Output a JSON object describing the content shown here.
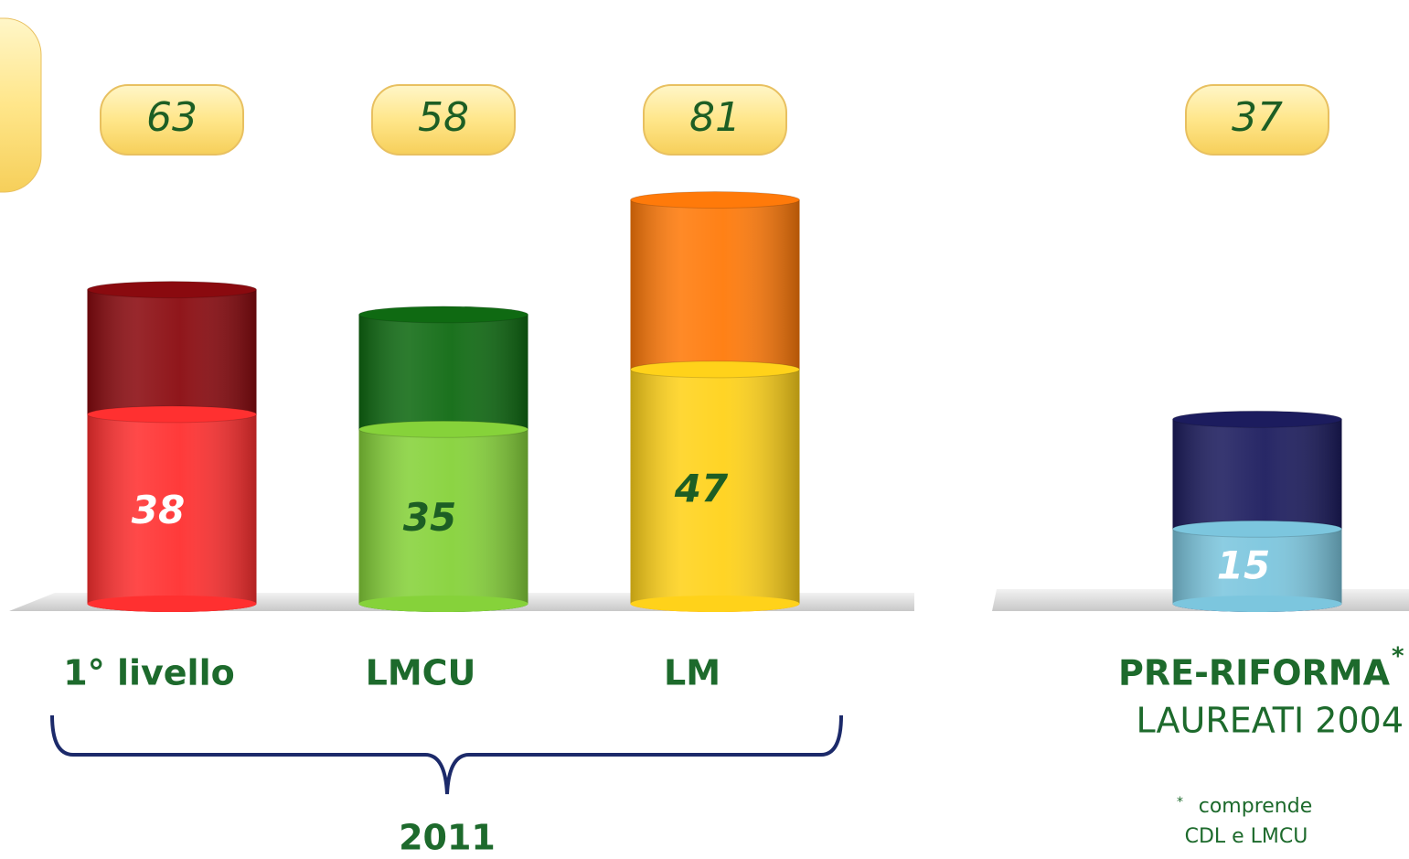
{
  "chart_data": {
    "type": "overlay_cylinder",
    "categories": [
      "1° livello",
      "LMCU",
      "LM",
      "PRE-RIFORMA"
    ],
    "series": [
      {
        "values": [
          63,
          58,
          81,
          37
        ],
        "colors": [
          "#8a0a0f",
          "#0f6a12",
          "#ff7a0a",
          "#1c1c5e"
        ],
        "label_color": "#1d5e24"
      },
      {
        "values": [
          38,
          35,
          47,
          15
        ],
        "colors": [
          "#ff3030",
          "#86d23a",
          "#ffd21a",
          "#7cc6de"
        ],
        "label_colors": [
          "#ffffff",
          "#1d5e24",
          "#1d5e24",
          "#ffffff"
        ]
      }
    ],
    "category_mark": "*",
    "subtitle": "LAUREATI 2004",
    "group_label": "2011",
    "footnote_mark": "*",
    "footnote": [
      "comprende",
      "CDL e LMCU"
    ]
  }
}
